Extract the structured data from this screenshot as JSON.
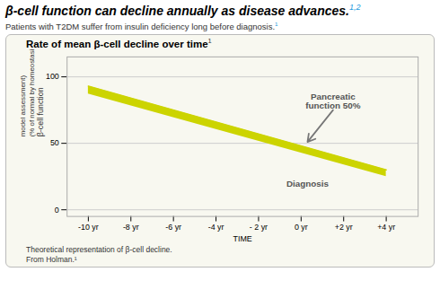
{
  "chart_data": {
    "type": "area",
    "title": "β-cell function can decline annually as disease advances.",
    "title_ref": "1,2",
    "subtitle": "Patients with T2DM suffer from insulin deficiency long before diagnosis.",
    "subtitle_ref": "1",
    "chart_title": "Rate of mean β-cell decline over time",
    "chart_title_ref": "1",
    "xlabel": "TIME",
    "ylabel": "β-cell function\n(% of normal by homeostasis\nmodel assessment)",
    "x": [
      -10,
      4
    ],
    "y_high": [
      93,
      30
    ],
    "y_low": [
      87,
      25
    ],
    "color": "#ccd400",
    "xlim": [
      -11.0,
      5.5
    ],
    "ylim": [
      -5,
      115
    ],
    "xticks": [
      {
        "value": -10,
        "label": "-10 yr"
      },
      {
        "value": -8,
        "label": "-8 yr"
      },
      {
        "value": -6,
        "label": "-6 yr"
      },
      {
        "value": -4,
        "label": "-4 yr"
      },
      {
        "value": -2,
        "label": "- 2 yr"
      },
      {
        "value": 0,
        "label": "0 yr"
      },
      {
        "value": 2,
        "label": "+2 yr"
      },
      {
        "value": 4,
        "label": "+4 yr"
      }
    ],
    "yticks": [
      0,
      50,
      100
    ],
    "grid": true,
    "annotations": [
      {
        "text": "Pancreatic\nfunction 50%",
        "x": 1.5,
        "y": 75,
        "arrow_x": 0.3,
        "arrow_y": 51
      },
      {
        "text": "Diagnosis",
        "x": 0.3,
        "y": 16
      }
    ],
    "footnotes": [
      "Theoretical representation of β-cell decline.",
      "From Holman.¹"
    ]
  }
}
